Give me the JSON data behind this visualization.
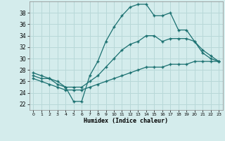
{
  "xlabel": "Humidex (Indice chaleur)",
  "bg_color": "#d4ecec",
  "grid_color": "#b8d8d8",
  "line_color": "#1a7070",
  "line1_x": [
    0,
    1,
    2,
    3,
    4,
    5,
    6,
    7,
    8,
    9,
    10,
    11,
    12,
    13,
    14,
    15,
    16,
    17,
    18,
    19,
    20,
    21,
    22,
    23
  ],
  "line1_y": [
    27.5,
    27.0,
    26.5,
    26.0,
    25.0,
    22.5,
    22.5,
    27.0,
    29.5,
    33.0,
    35.5,
    37.5,
    39.0,
    39.5,
    39.5,
    37.5,
    37.5,
    38.0,
    35.0,
    35.0,
    33.0,
    31.0,
    30.0,
    29.5
  ],
  "line2_x": [
    0,
    1,
    2,
    3,
    4,
    5,
    6,
    7,
    8,
    9,
    10,
    11,
    12,
    13,
    14,
    15,
    16,
    17,
    18,
    19,
    20,
    21,
    22,
    23
  ],
  "line2_y": [
    27.0,
    26.5,
    26.5,
    25.5,
    25.0,
    25.0,
    25.0,
    26.0,
    27.0,
    28.5,
    30.0,
    31.5,
    32.5,
    33.0,
    34.0,
    34.0,
    33.0,
    33.5,
    33.5,
    33.5,
    33.0,
    31.5,
    30.5,
    29.5
  ],
  "line3_x": [
    0,
    1,
    2,
    3,
    4,
    5,
    6,
    7,
    8,
    9,
    10,
    11,
    12,
    13,
    14,
    15,
    16,
    17,
    18,
    19,
    20,
    21,
    22,
    23
  ],
  "line3_y": [
    26.5,
    26.0,
    25.5,
    25.0,
    24.5,
    24.5,
    24.5,
    25.0,
    25.5,
    26.0,
    26.5,
    27.0,
    27.5,
    28.0,
    28.5,
    28.5,
    28.5,
    29.0,
    29.0,
    29.0,
    29.5,
    29.5,
    29.5,
    29.5
  ],
  "xlim": [
    -0.5,
    23.5
  ],
  "ylim": [
    21,
    40
  ],
  "yticks": [
    22,
    24,
    26,
    28,
    30,
    32,
    34,
    36,
    38
  ],
  "xticks": [
    0,
    1,
    2,
    3,
    4,
    5,
    6,
    7,
    8,
    9,
    10,
    11,
    12,
    13,
    14,
    15,
    16,
    17,
    18,
    19,
    20,
    21,
    22,
    23
  ]
}
